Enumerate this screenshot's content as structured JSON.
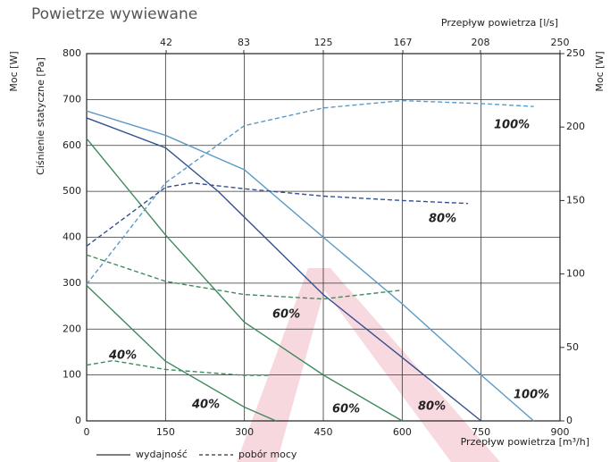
{
  "chart_data": {
    "type": "line",
    "title": "Powietrze wywiewane",
    "x_label": "Przepływ powietrza [m³/h]",
    "x2_label": "Przepływ powietrza [l/s]",
    "y_label": "Ciśnienie statyczne [Pa]",
    "y_label_outer": "Moc [W]",
    "y2_label": "Moc [W]",
    "xlim": [
      0,
      900
    ],
    "xticks": [
      0,
      150,
      300,
      450,
      600,
      750,
      900
    ],
    "x2lim": [
      0,
      250
    ],
    "x2ticks": [
      42,
      83,
      125,
      167,
      208,
      250
    ],
    "ylim": [
      0,
      800
    ],
    "yticks": [
      0,
      100,
      200,
      300,
      400,
      500,
      600,
      700,
      800
    ],
    "y2lim": [
      0,
      250
    ],
    "y2ticks": [
      0,
      50,
      100,
      150,
      200,
      250
    ],
    "grid": true,
    "legend": [
      {
        "label": "wydajność",
        "style": "solid"
      },
      {
        "label": "pobór mocy",
        "style": "dashed"
      }
    ],
    "series": [
      {
        "name": "100%",
        "color": "#5b9ac6",
        "style": "solid",
        "x": [
          0,
          150,
          300,
          450,
          600,
          750,
          850
        ],
        "values": [
          675,
          622,
          547,
          400,
          255,
          100,
          0
        ]
      },
      {
        "name": "80%",
        "color": "#34508e",
        "style": "solid",
        "x": [
          0,
          150,
          250,
          450,
          600,
          750
        ],
        "values": [
          660,
          595,
          500,
          275,
          138,
          0
        ]
      },
      {
        "name": "60%",
        "color": "#3f8a5c",
        "style": "solid",
        "x": [
          0,
          150,
          300,
          450,
          600
        ],
        "values": [
          615,
          405,
          215,
          100,
          0
        ]
      },
      {
        "name": "40%",
        "color": "#3f8a5c",
        "style": "solid",
        "x": [
          0,
          150,
          300,
          360
        ],
        "values": [
          295,
          130,
          30,
          0
        ]
      },
      {
        "name": "100%",
        "color": "#5b9ac6",
        "style": "dashed",
        "axis": "y2",
        "x": [
          0,
          150,
          300,
          450,
          600,
          750,
          850
        ],
        "values": [
          93,
          162,
          201,
          213,
          218,
          216,
          214
        ]
      },
      {
        "name": "80%",
        "color": "#34508e",
        "style": "dashed",
        "axis": "y2",
        "x": [
          0,
          150,
          200,
          300,
          450,
          600,
          725
        ],
        "values": [
          119,
          159,
          162,
          158,
          153,
          150,
          148
        ]
      },
      {
        "name": "60%",
        "color": "#3f8a5c",
        "style": "dashed",
        "axis": "y2",
        "x": [
          0,
          150,
          300,
          450,
          600
        ],
        "values": [
          113,
          95,
          86,
          83,
          89
        ]
      },
      {
        "name": "40%",
        "color": "#3f8a5c",
        "style": "dashed",
        "axis": "y2",
        "x": [
          0,
          50,
          150,
          300,
          350
        ],
        "values": [
          38,
          41,
          35,
          31,
          31
        ]
      }
    ]
  }
}
